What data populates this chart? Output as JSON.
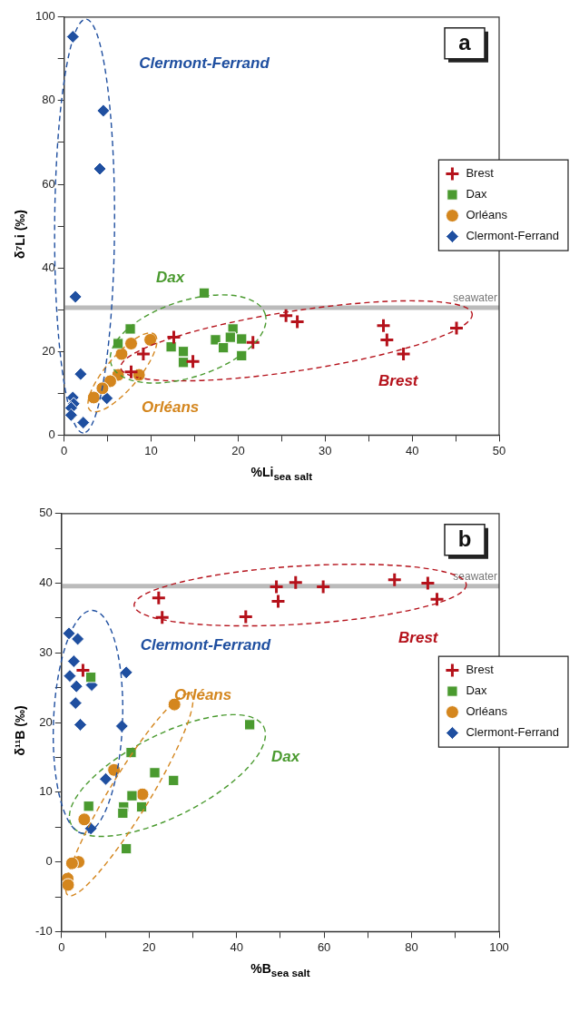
{
  "chart_data": [
    {
      "type": "scatter",
      "xlabel": "%Li$_{sea salt}$",
      "ylabel": "δ⁷Li (‰)",
      "xlim": [
        0,
        50
      ],
      "ylim": [
        0,
        100
      ],
      "xticks": [
        0,
        {
          "value": 5,
          "label": null
        },
        10,
        {
          "value": 15,
          "label": null
        },
        20,
        {
          "value": 25,
          "label": null
        },
        30,
        {
          "value": 35,
          "label": null
        },
        40,
        {
          "value": 45,
          "label": null
        },
        50
      ],
      "yticks": [
        0,
        {
          "value": 10,
          "label": null
        },
        20,
        {
          "value": 30,
          "label": null
        },
        40,
        {
          "value": 50,
          "label": null
        },
        60,
        {
          "value": 70,
          "label": null
        },
        80,
        {
          "value": 90,
          "label": null
        },
        100
      ],
      "grid": false,
      "legend": "right",
      "ref_lines": [
        {
          "axis": "y",
          "value": 30.5,
          "label": "seawater",
          "color": "#bbbbbb"
        }
      ],
      "annotations": [
        "a",
        "Brest",
        "Dax",
        "Orléans",
        "Clermont-Ferrand"
      ],
      "series": [
        {
          "name": "Brest",
          "color": "#b5121b",
          "marker": "cross",
          "x": [
            7.7,
            9.1,
            12.6,
            14.8,
            21.7,
            25.5,
            26.8,
            36.7,
            37.1,
            39.0,
            45.1
          ],
          "values": [
            15.1,
            19.4,
            23.4,
            17.6,
            22.2,
            28.6,
            27.1,
            26.2,
            22.8,
            19.4,
            25.6
          ]
        },
        {
          "name": "Dax",
          "color": "#4a9a2f",
          "marker": "square",
          "x": [
            16.1,
            7.6,
            6.2,
            12.3,
            13.7,
            13.7,
            17.4,
            18.3,
            19.4,
            19.1,
            20.4,
            20.4
          ],
          "values": [
            34.0,
            25.4,
            21.9,
            21.1,
            20.0,
            17.4,
            22.8,
            20.9,
            25.4,
            23.4,
            23.0,
            19.0
          ]
        },
        {
          "name": "Orléans",
          "color": "#d4861e",
          "marker": "circle",
          "x": [
            9.9,
            7.7,
            6.6,
            8.6,
            6.2,
            5.3,
            4.4,
            3.4
          ],
          "values": [
            22.8,
            21.9,
            19.4,
            14.4,
            14.4,
            12.9,
            11.2,
            9.0
          ]
        },
        {
          "name": "Clermont-Ferrand",
          "color": "#1f4fa0",
          "marker": "diamond",
          "x": [
            1.0,
            4.5,
            4.1,
            1.3,
            1.9,
            4.9,
            1.0,
            1.1,
            0.8,
            0.8,
            2.2
          ],
          "values": [
            95.3,
            77.6,
            63.7,
            33.1,
            14.6,
            8.8,
            9.0,
            7.5,
            6.5,
            4.8,
            3.0
          ]
        }
      ]
    },
    {
      "type": "scatter",
      "xlabel": "%B$_{sea salt}$",
      "ylabel": "δ¹¹B (‰)",
      "xlim": [
        0,
        100
      ],
      "ylim": [
        -10,
        50
      ],
      "xticks": [
        0,
        {
          "value": 10,
          "label": null
        },
        20,
        {
          "value": 30,
          "label": null
        },
        40,
        {
          "value": 50,
          "label": null
        },
        60,
        {
          "value": 70,
          "label": null
        },
        80,
        {
          "value": 90,
          "label": null
        },
        100
      ],
      "yticks": [
        -10,
        {
          "value": -5,
          "label": null
        },
        0,
        {
          "value": 5,
          "label": null
        },
        10,
        {
          "value": 15,
          "label": null
        },
        20,
        {
          "value": 25,
          "label": null
        },
        30,
        {
          "value": 35,
          "label": null
        },
        40,
        {
          "value": 45,
          "label": null
        },
        50
      ],
      "grid": false,
      "legend": "right",
      "ref_lines": [
        {
          "axis": "y",
          "value": 39.6,
          "label": "seawater",
          "color": "#bbbbbb"
        }
      ],
      "annotations": [
        "b",
        "Brest",
        "Dax",
        "Orléans",
        "Clermont-Ferrand"
      ],
      "series": [
        {
          "name": "Brest",
          "color": "#b5121b",
          "marker": "cross",
          "x": [
            22.2,
            23.0,
            42.1,
            49.1,
            49.5,
            53.5,
            59.8,
            76.1,
            83.7,
            85.8,
            4.9
          ],
          "values": [
            37.9,
            35.1,
            35.2,
            39.5,
            37.4,
            40.1,
            39.5,
            40.5,
            40.0,
            37.7,
            27.5
          ]
        },
        {
          "name": "Dax",
          "color": "#4a9a2f",
          "marker": "square",
          "x": [
            6.7,
            43.0,
            15.9,
            21.3,
            25.6,
            16.1,
            6.2,
            14.2,
            14.0,
            18.3,
            14.8
          ],
          "values": [
            26.5,
            19.7,
            15.7,
            12.8,
            11.7,
            9.5,
            8.0,
            7.9,
            7.0,
            7.9,
            1.9
          ]
        },
        {
          "name": "Orléans",
          "color": "#d4861e",
          "marker": "circle",
          "x": [
            25.8,
            12.0,
            18.5,
            5.2,
            3.9,
            2.4,
            1.4,
            1.5
          ],
          "values": [
            22.6,
            13.2,
            9.7,
            6.1,
            0.0,
            -0.2,
            -2.4,
            -3.3
          ]
        },
        {
          "name": "Clermont-Ferrand",
          "color": "#1f4fa0",
          "marker": "diamond",
          "x": [
            1.7,
            3.7,
            2.8,
            1.9,
            14.8,
            3.4,
            6.9,
            3.2,
            4.3,
            13.8,
            10.1,
            6.7
          ],
          "values": [
            32.8,
            32.0,
            28.8,
            26.7,
            27.2,
            25.2,
            25.4,
            22.8,
            19.7,
            19.5,
            11.9,
            4.8
          ]
        }
      ]
    }
  ]
}
